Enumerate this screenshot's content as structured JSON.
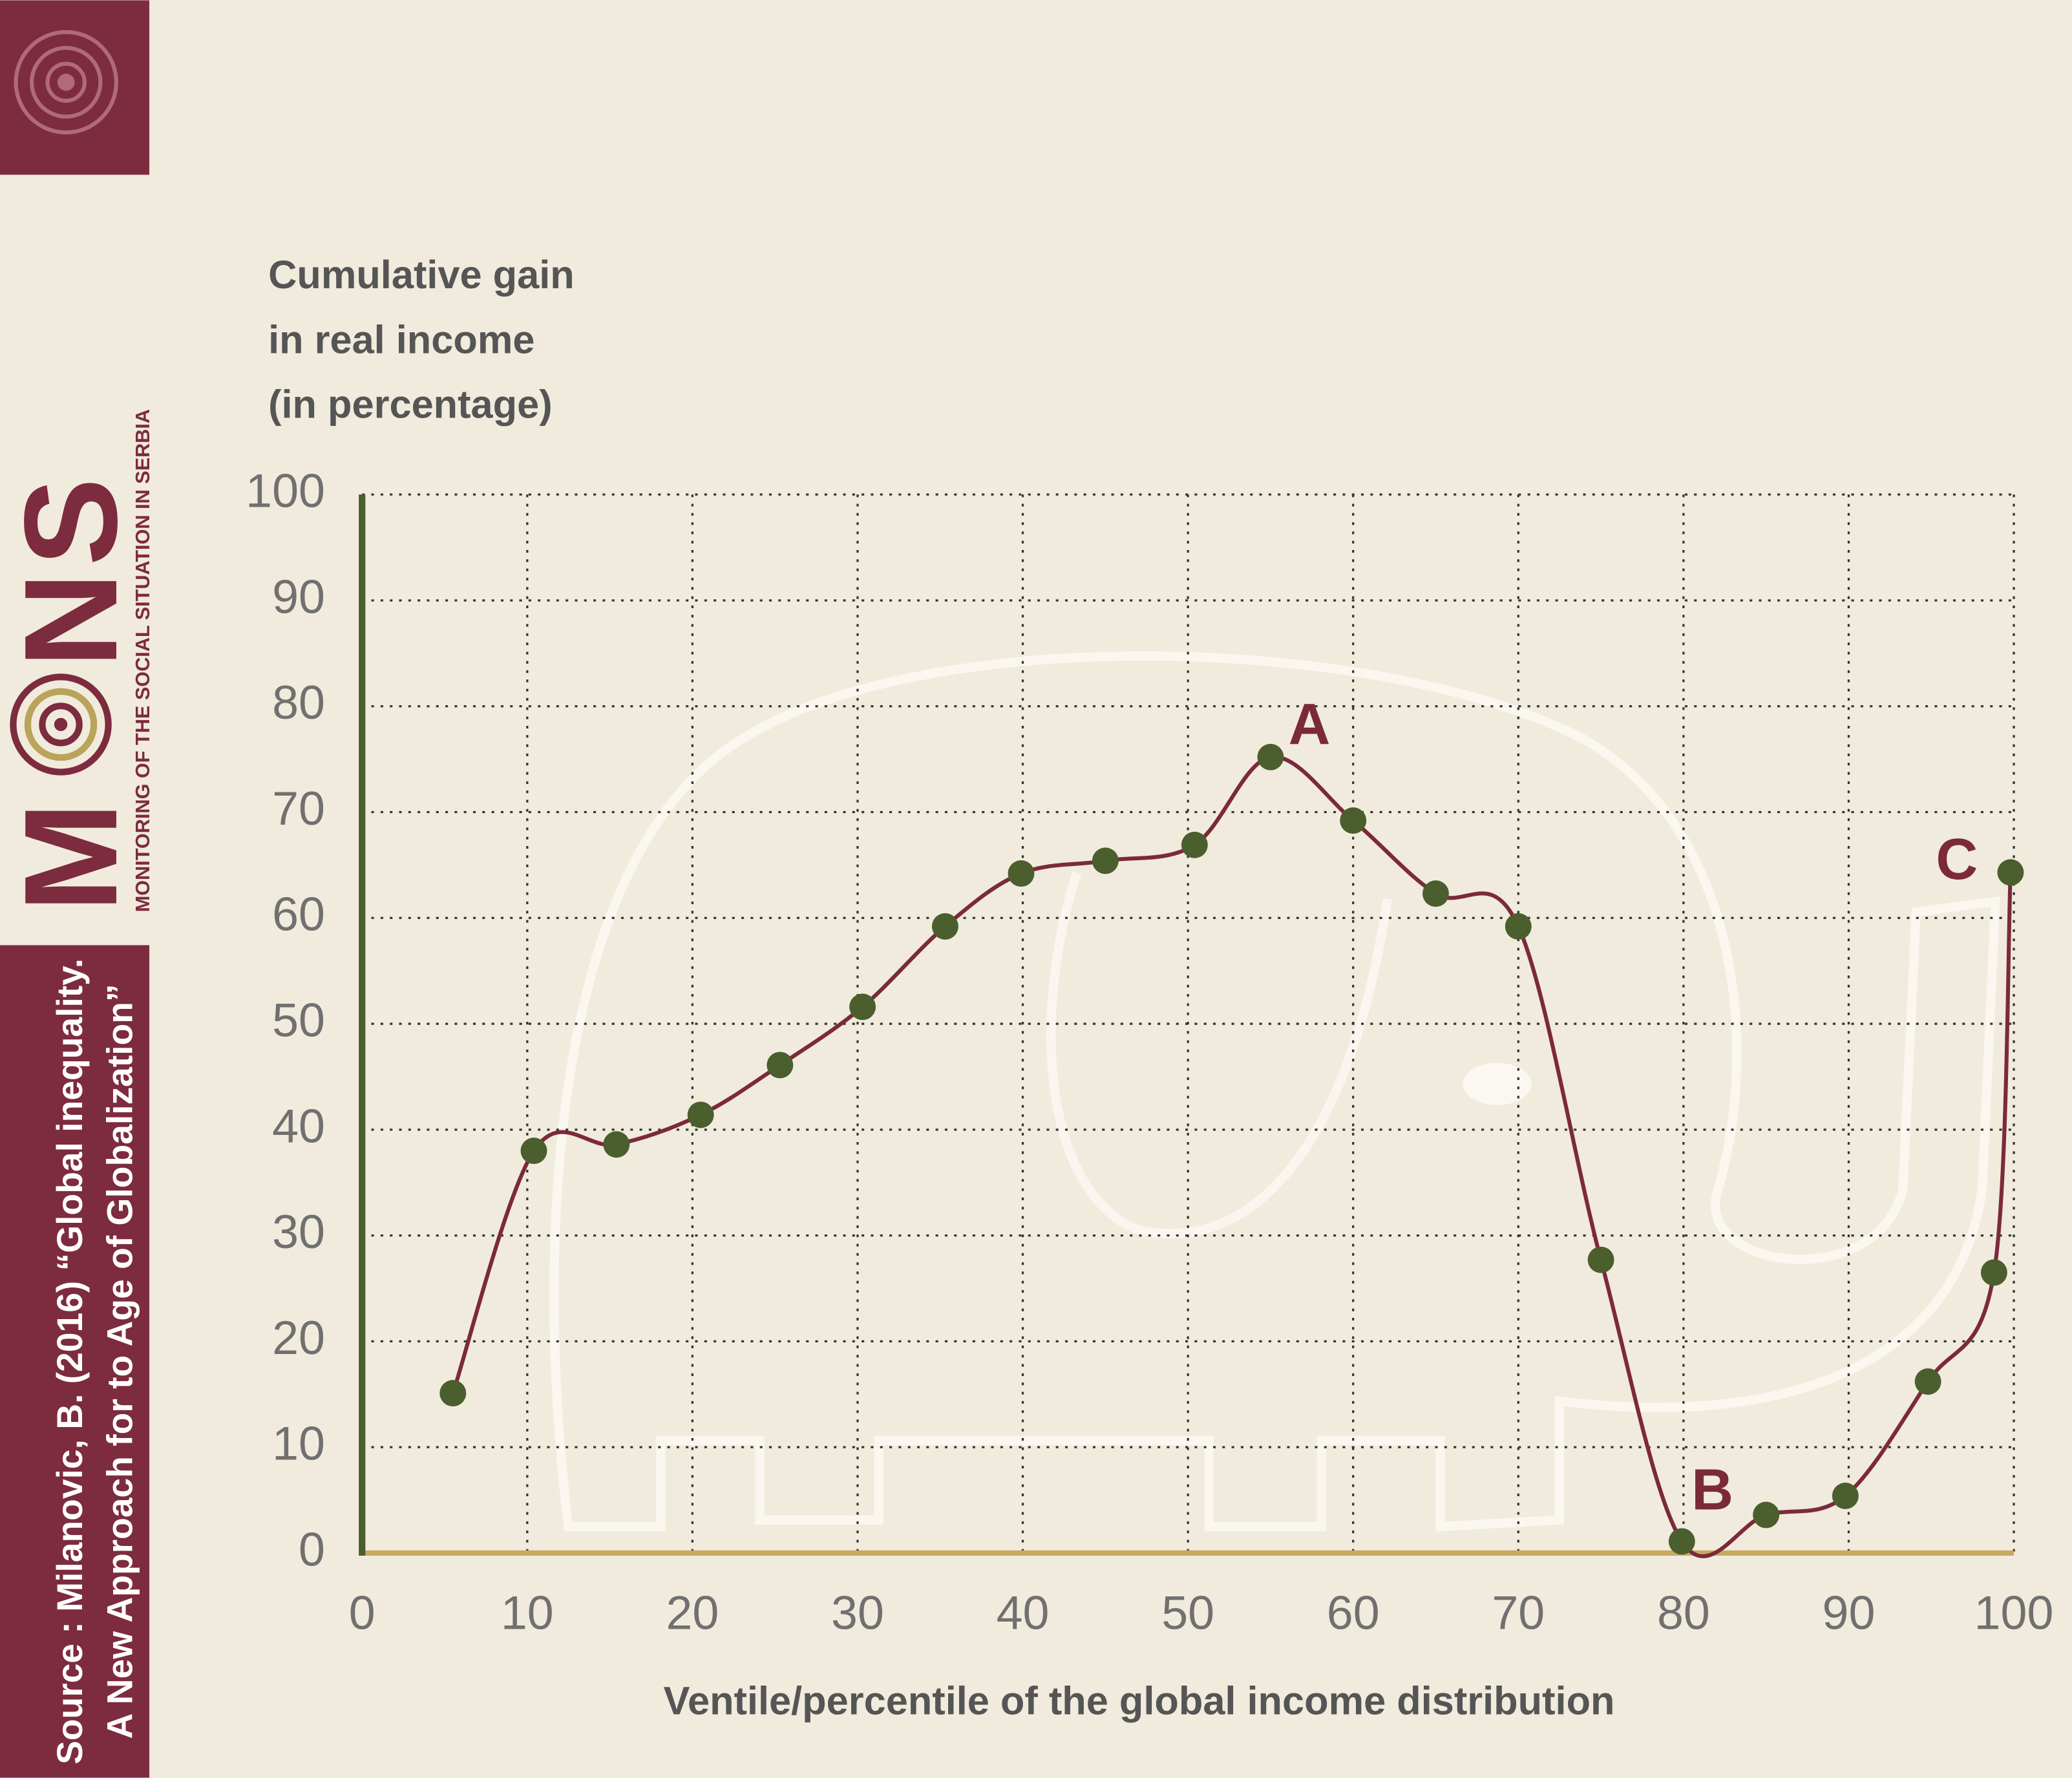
{
  "chart_data": {
    "type": "line",
    "y_label_lines": [
      "Cumulative gain",
      "in real income",
      "(in percentage)"
    ],
    "x_label": "Ventile/percentile of the global income distribution",
    "x": [
      5.5,
      10.4,
      15.4,
      20.5,
      25.3,
      30.3,
      35.3,
      39.9,
      45,
      50.4,
      55,
      60,
      65,
      70,
      75,
      79.9,
      85,
      89.8,
      94.8,
      98.8,
      99.8
    ],
    "series": [
      {
        "name": "Cumulative gain",
        "color": "#7b2a3a",
        "marker_color": "#4a5e2e",
        "values": [
          15.1,
          38,
          38.6,
          41.4,
          46.1,
          51.6,
          59.2,
          64.2,
          65.4,
          66.9,
          75.2,
          69.2,
          62.3,
          59.2,
          27.7,
          1.1,
          3.6,
          5.4,
          16.2,
          26.5,
          64.3
        ]
      }
    ],
    "xlim": [
      0,
      100
    ],
    "xticks": [
      0,
      10,
      20,
      30,
      40,
      50,
      60,
      70,
      80,
      90,
      100
    ],
    "ylim": [
      0,
      100
    ],
    "yticks": [
      0,
      10,
      20,
      30,
      40,
      50,
      60,
      70,
      80,
      90,
      100
    ],
    "grid": true,
    "annotations": [
      "A",
      "B",
      "C"
    ]
  },
  "sidebar": {
    "brand_letters": [
      "M",
      "N",
      "S"
    ],
    "brand_tagline": "MONITORING OF THE SOCIAL SITUATION IN SERBIA",
    "source_lines": [
      "Source : Milanovic, B. (2016) “Global inequality.",
      "A New Approach for to Age of Globalization”"
    ]
  }
}
